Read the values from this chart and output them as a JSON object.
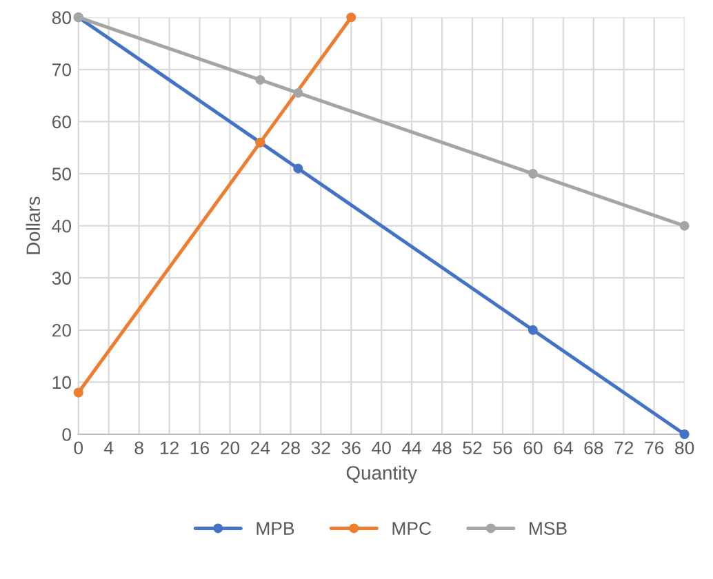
{
  "chart_data": {
    "type": "line",
    "xlabel": "Quantity",
    "ylabel": "Dollars",
    "series": [
      {
        "name": "MPB",
        "color": "#4472c4",
        "x": [
          0,
          24,
          29,
          60,
          80
        ],
        "values": [
          80,
          56,
          51,
          20,
          0
        ]
      },
      {
        "name": "MPC",
        "color": "#ed7d31",
        "x": [
          0,
          24,
          36
        ],
        "values": [
          8,
          56,
          80
        ]
      },
      {
        "name": "MSB",
        "color": "#a5a5a5",
        "x": [
          0,
          24,
          29,
          60,
          80
        ],
        "values": [
          80,
          68,
          65.5,
          50,
          40
        ]
      }
    ],
    "xlim": [
      0,
      80
    ],
    "ylim": [
      0,
      80
    ],
    "xticks": [
      0,
      4,
      8,
      12,
      16,
      20,
      24,
      28,
      32,
      36,
      40,
      44,
      48,
      52,
      56,
      60,
      64,
      68,
      72,
      76,
      80
    ],
    "yticks": [
      0,
      10,
      20,
      30,
      40,
      50,
      60,
      70,
      80
    ],
    "grid": true,
    "legend": "bottom",
    "marker": "circle",
    "line_style": "solid"
  }
}
